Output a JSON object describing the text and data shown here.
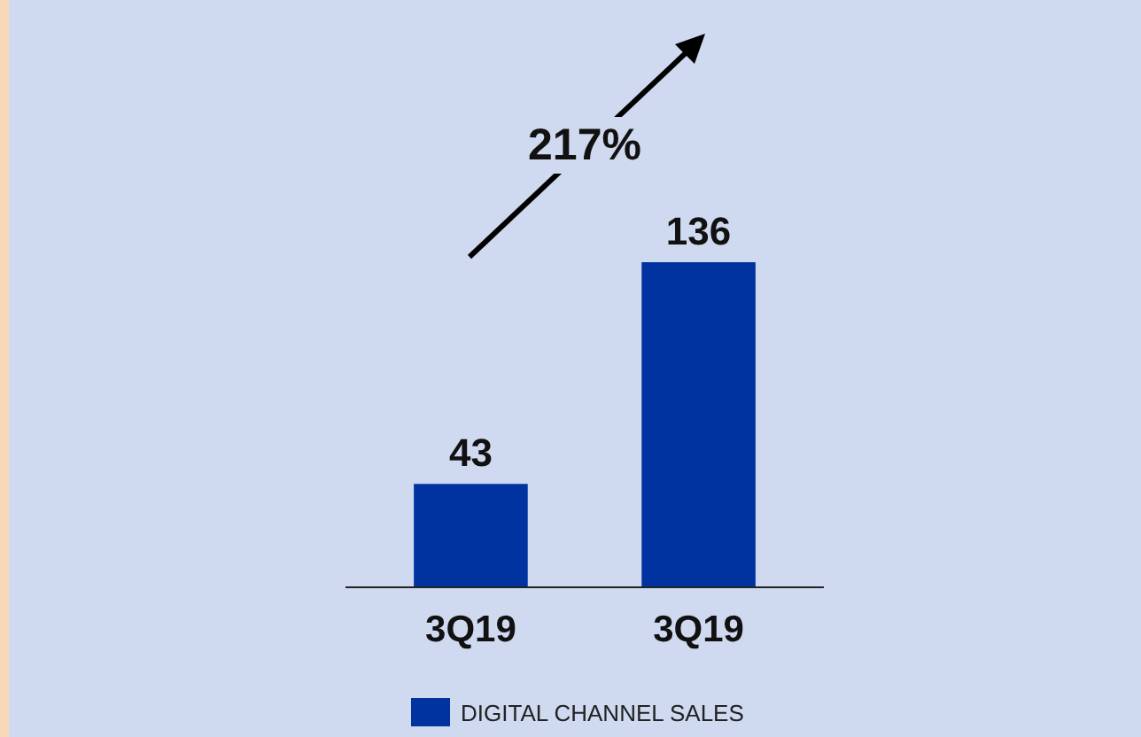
{
  "chart_data": {
    "type": "bar",
    "categories": [
      "3Q19",
      "3Q19"
    ],
    "series": [
      {
        "name": "DIGITAL CHANNEL SALES",
        "color": "#0033a0",
        "values": [
          43,
          136
        ]
      }
    ],
    "data_labels": true,
    "legend": "bottom",
    "annotations": [
      "217%"
    ]
  }
}
